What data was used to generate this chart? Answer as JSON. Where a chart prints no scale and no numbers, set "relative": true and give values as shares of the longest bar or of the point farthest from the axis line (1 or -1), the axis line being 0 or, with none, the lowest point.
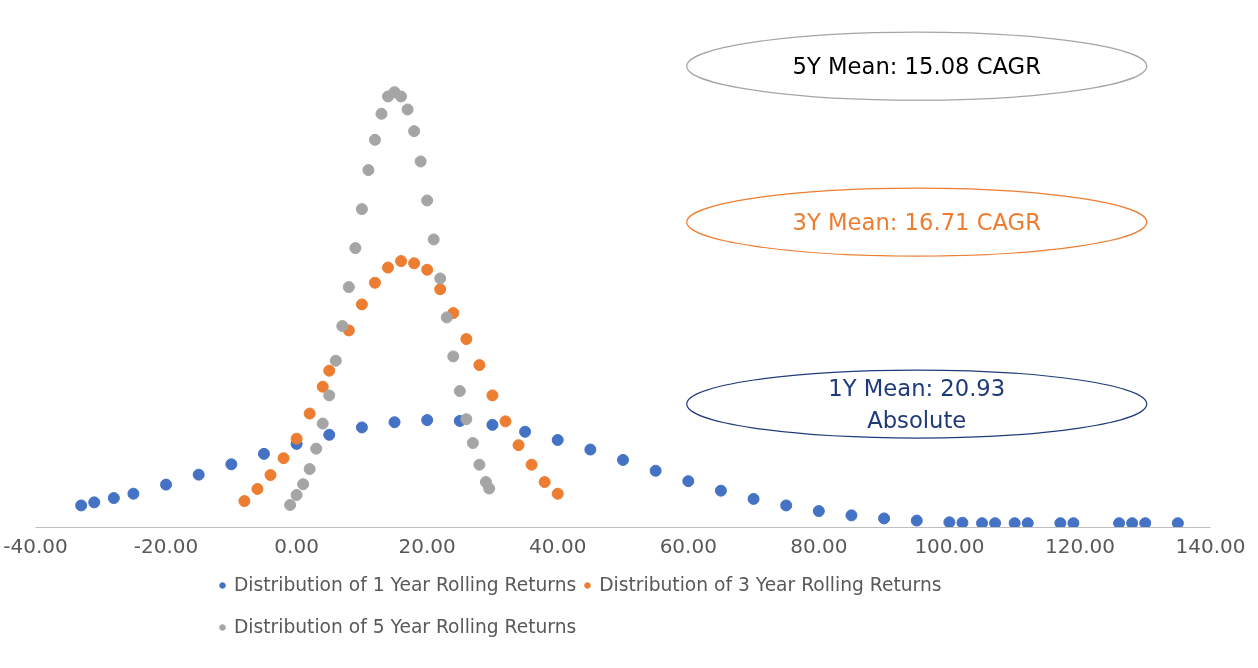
{
  "chart_data": {
    "type": "scatter",
    "relative": true,
    "marker": "circle",
    "grid": false,
    "legend": "bottom",
    "xlim": [
      -40,
      140
    ],
    "xticks": [
      {
        "value": -40,
        "label": "-40.00"
      },
      {
        "value": -20,
        "label": "-20.00"
      },
      {
        "value": 0,
        "label": "0.00"
      },
      {
        "value": 20,
        "label": "20.00"
      },
      {
        "value": 40,
        "label": "40.00"
      },
      {
        "value": 60,
        "label": "60.00"
      },
      {
        "value": 80,
        "label": "80.00"
      },
      {
        "value": 100,
        "label": "100.00"
      },
      {
        "value": 120,
        "label": "120.00"
      },
      {
        "value": 140,
        "label": "140.00"
      }
    ],
    "annotations": [
      "5Y Mean: 15.08 CAGR",
      "3Y Mean: 16.71 CAGR",
      "1Y Mean: 20.93\nAbsolute"
    ],
    "series": [
      {
        "name": "Distribution of 1 Year Rolling Returns",
        "color": "#4472c4",
        "x": [
          -33,
          -31,
          -28,
          -25,
          -20,
          -15,
          -10,
          -5,
          0,
          5,
          10,
          15,
          20,
          25,
          30,
          35,
          40,
          45,
          50,
          55,
          60,
          65,
          70,
          75,
          80,
          85,
          90,
          95,
          100,
          102,
          105,
          107,
          110,
          112,
          117,
          119,
          126,
          128,
          130,
          135
        ],
        "values": [
          0.046,
          0.053,
          0.063,
          0.073,
          0.094,
          0.117,
          0.141,
          0.165,
          0.188,
          0.209,
          0.226,
          0.238,
          0.243,
          0.241,
          0.232,
          0.216,
          0.197,
          0.175,
          0.151,
          0.126,
          0.102,
          0.08,
          0.061,
          0.046,
          0.033,
          0.023,
          0.016,
          0.011,
          0.007,
          0.006,
          0.005,
          0.005,
          0.005,
          0.005,
          0.005,
          0.005,
          0.005,
          0.005,
          0.005,
          0.005
        ]
      },
      {
        "name": "Distribution of 3 Year Rolling Returns",
        "color": "#ed7d31",
        "x": [
          -8,
          -6,
          -4,
          -2,
          0,
          2,
          4,
          5,
          8,
          10,
          12,
          14,
          16,
          18,
          20,
          22,
          24,
          26,
          28,
          30,
          32,
          34,
          36,
          38,
          40
        ],
        "values": [
          0.056,
          0.084,
          0.116,
          0.155,
          0.2,
          0.258,
          0.32,
          0.357,
          0.45,
          0.51,
          0.56,
          0.595,
          0.61,
          0.605,
          0.59,
          0.545,
          0.49,
          0.43,
          0.37,
          0.3,
          0.24,
          0.185,
          0.14,
          0.1,
          0.073
        ]
      },
      {
        "name": "Distribution of 5 Year Rolling Returns",
        "color": "#a5a5a5",
        "x": [
          -1,
          0,
          1,
          2,
          3,
          4,
          5,
          6,
          7,
          8,
          9,
          10,
          11,
          12,
          13,
          14,
          15,
          16,
          17,
          18,
          19,
          20,
          21,
          22,
          23,
          24,
          25,
          26,
          27,
          28,
          29,
          29.5
        ],
        "values": [
          0.047,
          0.07,
          0.095,
          0.13,
          0.177,
          0.235,
          0.3,
          0.38,
          0.46,
          0.55,
          0.64,
          0.73,
          0.82,
          0.89,
          0.95,
          0.99,
          1.0,
          0.99,
          0.96,
          0.91,
          0.84,
          0.75,
          0.66,
          0.57,
          0.48,
          0.39,
          0.31,
          0.245,
          0.19,
          0.14,
          0.1,
          0.085
        ]
      }
    ]
  }
}
